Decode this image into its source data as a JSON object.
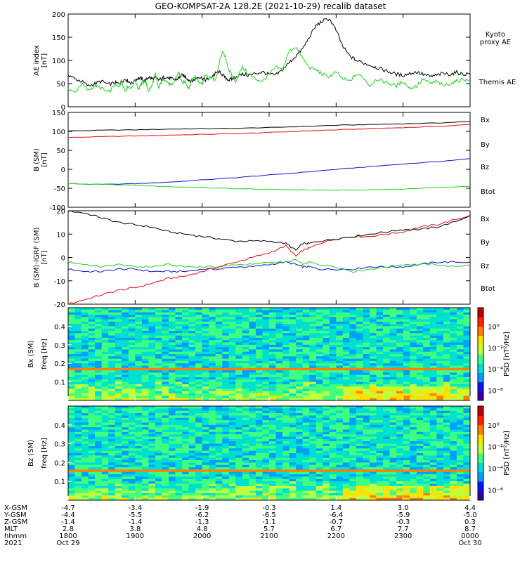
{
  "title": "GEO-KOMPSAT-2A 128.2E (2021-10-29) recalib dataset",
  "colors": {
    "black": "#000000",
    "red": "#e01010",
    "blue": "#1010d0",
    "green": "#20d020"
  },
  "chart_data": [
    {
      "type": "line",
      "panel": "ae",
      "ylabel": "AE index",
      "yunit": "[nT]",
      "ylim": [
        0,
        200
      ],
      "yticks": [
        "0",
        "50",
        "100",
        "150",
        "200"
      ],
      "legend": [
        {
          "label1": "Kyoto",
          "label2": "proxy AE",
          "color": "#20d020"
        },
        {
          "label1": "Themis AE",
          "label2": "",
          "color": "#000000"
        }
      ],
      "x": [
        0,
        0.1,
        0.2,
        0.3,
        0.4,
        0.5,
        0.6,
        0.7,
        0.75,
        0.8,
        0.85,
        0.9,
        0.95,
        1.0,
        1.05,
        1.1,
        1.15,
        1.2,
        1.25,
        1.3,
        1.35,
        1.4,
        1.45,
        1.5,
        1.55,
        1.6,
        1.65,
        1.7,
        1.75,
        1.8,
        1.85,
        1.9,
        1.95,
        2.0,
        2.05,
        2.1,
        2.15,
        2.2,
        2.25,
        2.3,
        2.35,
        2.4,
        2.45,
        2.5,
        2.6,
        2.7,
        2.8,
        2.9,
        3.0,
        3.1,
        3.2,
        3.3,
        3.4,
        3.5,
        3.6,
        3.7,
        3.8,
        3.9,
        4.0,
        4.1,
        4.2,
        4.3,
        4.4,
        4.5,
        4.6,
        4.7,
        4.8,
        4.9,
        5.0,
        5.1,
        5.2,
        5.3,
        5.4,
        5.5,
        5.6,
        5.7,
        5.8,
        5.9,
        6.0
      ],
      "series": [
        {
          "name": "Themis AE",
          "color": "#000000",
          "values": [
            70,
            60,
            55,
            45,
            50,
            55,
            48,
            52,
            50,
            55,
            60,
            55,
            50,
            58,
            62,
            60,
            55,
            65,
            60,
            62,
            58,
            60,
            65,
            62,
            60,
            58,
            62,
            68,
            65,
            58,
            55,
            60,
            65,
            62,
            58,
            60,
            66,
            72,
            75,
            70,
            62,
            58,
            60,
            65,
            70,
            68,
            72,
            75,
            70,
            68,
            80,
            95,
            110,
            125,
            150,
            175,
            185,
            190,
            165,
            130,
            110,
            100,
            95,
            90,
            85,
            80,
            75,
            70,
            68,
            72,
            75,
            70,
            65,
            68,
            72,
            70,
            74,
            70,
            72
          ]
        },
        {
          "name": "Kyoto proxy AE",
          "color": "#20d020",
          "values": [
            40,
            30,
            50,
            35,
            45,
            40,
            30,
            48,
            42,
            55,
            35,
            45,
            40,
            60,
            38,
            50,
            55,
            35,
            45,
            70,
            40,
            55,
            60,
            50,
            45,
            60,
            75,
            50,
            55,
            40,
            60,
            65,
            55,
            50,
            70,
            60,
            65,
            55,
            90,
            120,
            105,
            80,
            65,
            55,
            85,
            70,
            60,
            55,
            70,
            85,
            80,
            120,
            130,
            105,
            85,
            80,
            70,
            65,
            75,
            60,
            55,
            70,
            65,
            45,
            60,
            55,
            50,
            45,
            55,
            40,
            45,
            60,
            50,
            55,
            45,
            50,
            55,
            60,
            55
          ]
        }
      ]
    },
    {
      "type": "line",
      "panel": "b",
      "ylabel": "B (SM)",
      "yunit": "[nT]",
      "ylim": [
        -100,
        150
      ],
      "yticks": [
        "-100",
        "-50",
        "0",
        "50",
        "100",
        "150"
      ],
      "legend": [
        {
          "label1": "Bx",
          "color": "#1010d0"
        },
        {
          "label1": "By",
          "color": "#20d020"
        },
        {
          "label1": "Bz",
          "color": "#e01010"
        },
        {
          "label1": "Btot",
          "color": "#000000"
        }
      ],
      "x": [
        0,
        0.5,
        1,
        1.5,
        2,
        2.5,
        3,
        3.5,
        4,
        4.5,
        5,
        5.5,
        6
      ],
      "series": [
        {
          "name": "Bx",
          "color": "#1010d0",
          "values": [
            -38,
            -40,
            -38,
            -34,
            -28,
            -22,
            -15,
            -8,
            0,
            7,
            14,
            20,
            28
          ]
        },
        {
          "name": "By",
          "color": "#20d020",
          "values": [
            -38,
            -40,
            -42,
            -46,
            -48,
            -51,
            -53,
            -54,
            -55,
            -54,
            -52,
            -48,
            -45
          ]
        },
        {
          "name": "Bz",
          "color": "#e01010",
          "values": [
            84,
            86,
            88,
            90,
            92,
            94,
            97,
            101,
            104,
            107,
            110,
            113,
            118
          ]
        },
        {
          "name": "Btot",
          "color": "#000000",
          "values": [
            101,
            103,
            104,
            106,
            107,
            108,
            110,
            113,
            116,
            118,
            120,
            122,
            126
          ]
        }
      ]
    },
    {
      "type": "line",
      "panel": "dB",
      "ylabel": "B (SM)-IGRF (SM)",
      "yunit": "[nT]",
      "ylim": [
        -20,
        20
      ],
      "yticks": [
        "-20",
        "-10",
        "0",
        "10",
        "20"
      ],
      "legend": [
        {
          "label1": "Bx",
          "color": "#1010d0"
        },
        {
          "label1": "By",
          "color": "#20d020"
        },
        {
          "label1": "Bz",
          "color": "#e01010"
        },
        {
          "label1": "Btot",
          "color": "#000000"
        }
      ],
      "x": [
        0,
        0.25,
        0.5,
        0.75,
        1,
        1.25,
        1.5,
        1.75,
        2,
        2.25,
        2.5,
        2.75,
        3,
        3.25,
        3.4,
        3.5,
        3.6,
        3.75,
        4,
        4.25,
        4.5,
        4.75,
        5,
        5.25,
        5.5,
        5.75,
        6
      ],
      "series": [
        {
          "name": "Bx",
          "color": "#1010d0",
          "values": [
            -5,
            -6,
            -6,
            -5,
            -5,
            -6,
            -6,
            -6,
            -5,
            -5,
            -4,
            -4,
            -3,
            -2,
            -3,
            -4,
            -4,
            -5,
            -5,
            -5,
            -4,
            -4,
            -4,
            -3,
            -2,
            -2,
            -2
          ]
        },
        {
          "name": "By",
          "color": "#20d020",
          "values": [
            -2,
            -3,
            -4,
            -3,
            -4,
            -4,
            -3,
            -4,
            -4,
            -4,
            -3,
            -3,
            -2,
            -2,
            -1,
            -3,
            -2,
            -3,
            -4,
            -6,
            -5,
            -4,
            -3,
            -3,
            -3,
            -4,
            -3
          ]
        },
        {
          "name": "Bz",
          "color": "#e01010",
          "values": [
            -20,
            -18,
            -16,
            -14,
            -13,
            -11,
            -9,
            -8,
            -6,
            -4,
            -2,
            0,
            2,
            5,
            0.5,
            3,
            4,
            6,
            8,
            9,
            9,
            10,
            11,
            13,
            14,
            16,
            18
          ]
        },
        {
          "name": "Btot",
          "color": "#000000",
          "values": [
            20,
            19,
            17,
            15,
            14,
            13,
            11,
            10,
            9,
            8,
            7,
            7,
            7,
            6,
            3,
            6,
            6,
            7,
            8,
            9,
            10,
            11,
            12,
            12,
            13,
            15,
            18
          ]
        }
      ]
    },
    {
      "type": "heatmap",
      "panel": "bx_spec",
      "ylabel": "Bx (SM)",
      "yunit": "freq [Hz]",
      "ylim": [
        0,
        0.5
      ],
      "yticks": [
        "0.1",
        "0.2",
        "0.3",
        "0.4"
      ],
      "colorbar_label": "PSD [nT²/Hz]",
      "colorbar_ticks": [
        "10⁰",
        "10⁻²",
        "10⁻⁴",
        "10⁻⁶"
      ],
      "line_freq": 0.17
    },
    {
      "type": "heatmap",
      "panel": "bz_spec",
      "ylabel": "Bz (SM)",
      "yunit": "freq [Hz]",
      "ylim": [
        0,
        0.5
      ],
      "yticks": [
        "0.1",
        "0.2",
        "0.3",
        "0.4"
      ],
      "colorbar_label": "PSD [nT²/Hz]",
      "colorbar_ticks": [
        "10⁰",
        "10⁻²",
        "10⁻⁴",
        "10⁻⁶"
      ],
      "line_freq": 0.16
    }
  ],
  "xaxis": {
    "row_labels": [
      "X-GSM",
      "Y-GSM",
      "Z-GSM",
      "MLT",
      "hhmm",
      "2021"
    ],
    "columns": [
      [
        "-4.7",
        "-4.4",
        "-1.4",
        "2.8",
        "1800",
        "Oct 29"
      ],
      [
        "-3.4",
        "-5.5",
        "-1.4",
        "3.8",
        "1900",
        ""
      ],
      [
        "-1.9",
        "-6.2",
        "-1.3",
        "4.8",
        "2000",
        ""
      ],
      [
        "-0.3",
        "-6.5",
        "-1.1",
        "5.7",
        "2100",
        ""
      ],
      [
        "1.4",
        "-6.4",
        "-0.7",
        "6.7",
        "2200",
        ""
      ],
      [
        "3.0",
        "-5.9",
        "-0.3",
        "7.7",
        "2300",
        ""
      ],
      [
        "4.4",
        "-5.0",
        "0.3",
        "8.7",
        "0000",
        "Oct 30"
      ]
    ]
  }
}
